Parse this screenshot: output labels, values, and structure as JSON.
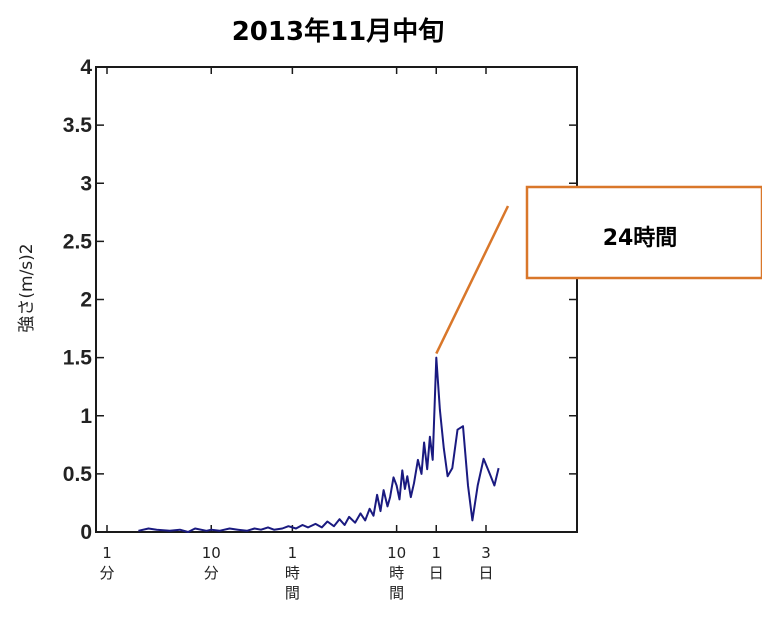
{
  "chart_data": {
    "type": "line",
    "title": "2013年11月中旬",
    "ylabel": "強さ(m/s)2",
    "xlabel": "",
    "x_scale": "log",
    "ylim": [
      0,
      4
    ],
    "yticks": [
      "0",
      "0.5",
      "1",
      "1.5",
      "2",
      "2.5",
      "3",
      "3.5",
      "4"
    ],
    "xticks": [
      {
        "value_minutes": 1,
        "label": "1\n分"
      },
      {
        "value_minutes": 10,
        "label": "10\n分"
      },
      {
        "value_minutes": 60,
        "label": "1\n時\n間"
      },
      {
        "value_minutes": 600,
        "label": "10\n時\n間"
      },
      {
        "value_minutes": 1440,
        "label": "1\n日"
      },
      {
        "value_minutes": 4320,
        "label": "3\n日"
      }
    ],
    "series": [
      {
        "color": "#1a1a80",
        "points_minutes": [
          [
            2,
            0.01
          ],
          [
            2.5,
            0.03
          ],
          [
            3,
            0.02
          ],
          [
            4,
            0.01
          ],
          [
            5,
            0.02
          ],
          [
            6,
            0.0
          ],
          [
            7,
            0.03
          ],
          [
            9,
            0.01
          ],
          [
            10,
            0.02
          ],
          [
            12,
            0.01
          ],
          [
            15,
            0.03
          ],
          [
            18,
            0.02
          ],
          [
            22,
            0.01
          ],
          [
            26,
            0.03
          ],
          [
            30,
            0.02
          ],
          [
            35,
            0.04
          ],
          [
            40,
            0.02
          ],
          [
            48,
            0.03
          ],
          [
            55,
            0.05
          ],
          [
            65,
            0.03
          ],
          [
            75,
            0.06
          ],
          [
            85,
            0.04
          ],
          [
            100,
            0.07
          ],
          [
            115,
            0.04
          ],
          [
            130,
            0.09
          ],
          [
            150,
            0.05
          ],
          [
            170,
            0.11
          ],
          [
            190,
            0.06
          ],
          [
            210,
            0.13
          ],
          [
            240,
            0.08
          ],
          [
            270,
            0.16
          ],
          [
            300,
            0.1
          ],
          [
            330,
            0.2
          ],
          [
            360,
            0.14
          ],
          [
            390,
            0.32
          ],
          [
            420,
            0.18
          ],
          [
            450,
            0.36
          ],
          [
            490,
            0.22
          ],
          [
            520,
            0.3
          ],
          [
            560,
            0.47
          ],
          [
            600,
            0.4
          ],
          [
            640,
            0.28
          ],
          [
            680,
            0.53
          ],
          [
            720,
            0.37
          ],
          [
            760,
            0.48
          ],
          [
            820,
            0.3
          ],
          [
            880,
            0.42
          ],
          [
            960,
            0.62
          ],
          [
            1040,
            0.5
          ],
          [
            1100,
            0.77
          ],
          [
            1180,
            0.54
          ],
          [
            1250,
            0.82
          ],
          [
            1330,
            0.62
          ],
          [
            1440,
            1.5
          ],
          [
            1560,
            1.05
          ],
          [
            1700,
            0.72
          ],
          [
            1850,
            0.48
          ],
          [
            2050,
            0.55
          ],
          [
            2300,
            0.88
          ],
          [
            2600,
            0.91
          ],
          [
            2900,
            0.4
          ],
          [
            3200,
            0.1
          ],
          [
            3600,
            0.4
          ],
          [
            4100,
            0.63
          ],
          [
            4700,
            0.5
          ],
          [
            5200,
            0.4
          ],
          [
            5700,
            0.55
          ]
        ]
      }
    ],
    "annotations": [
      {
        "text": "24時間",
        "target_minutes": 1440,
        "target_value": 1.5
      }
    ]
  }
}
